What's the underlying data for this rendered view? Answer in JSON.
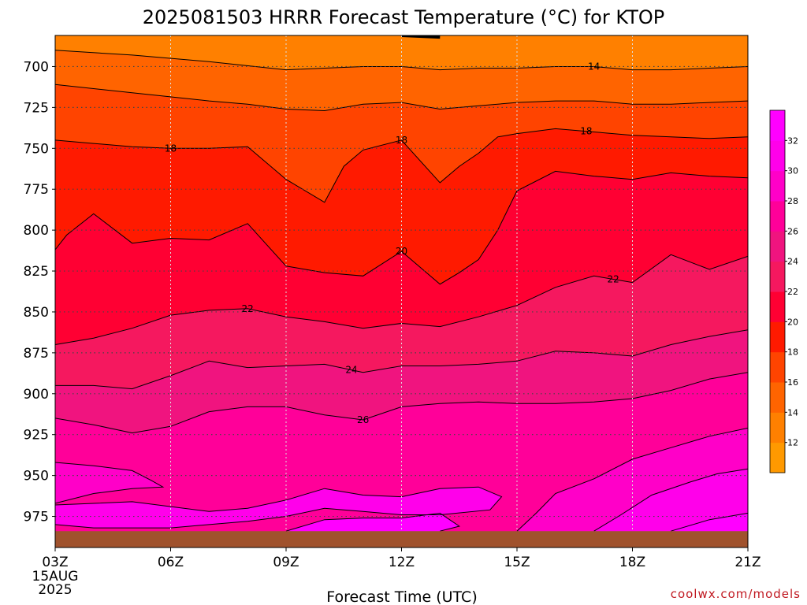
{
  "chart_data": {
    "type": "heatmap",
    "title": "2025081503 HRRR Forecast Temperature (°C) for KTOP",
    "xlabel": "Forecast Time (UTC)",
    "ylabel": "",
    "x_ticks": [
      "03Z",
      "06Z",
      "09Z",
      "12Z",
      "15Z",
      "18Z",
      "21Z"
    ],
    "x_tick_sublabels": [
      "15AUG",
      "2025"
    ],
    "x_hours": [
      3,
      6,
      9,
      12,
      15,
      18,
      21
    ],
    "y_ticks": [
      700,
      725,
      750,
      775,
      800,
      825,
      850,
      875,
      900,
      925,
      950,
      975
    ],
    "y_range": [
      681,
      994
    ],
    "y_axis_inverted": true,
    "units": "°C",
    "grid": true,
    "colorbar_levels": [
      12,
      14,
      16,
      18,
      20,
      22,
      24,
      26,
      28,
      30,
      32
    ],
    "colorbar_colors": [
      "#ff9900",
      "#ff8000",
      "#ff6400",
      "#ff4400",
      "#ff1a00",
      "#ff0033",
      "#f5185f",
      "#f0147f",
      "#ff0099",
      "#ff00c8",
      "#ff00ea",
      "#ff00ff"
    ],
    "isotherms": [
      {
        "level": 12,
        "label": "",
        "points": [
          [
            12,
            681
          ],
          [
            13,
            682
          ]
        ]
      },
      {
        "level": 14,
        "label": "14",
        "points": [
          [
            3,
            690
          ],
          [
            5,
            693
          ],
          [
            7,
            697
          ],
          [
            9,
            702
          ],
          [
            10,
            701
          ],
          [
            11,
            700
          ],
          [
            12,
            700
          ],
          [
            13,
            702
          ],
          [
            14,
            701
          ],
          [
            15,
            701
          ],
          [
            16,
            700
          ],
          [
            17,
            700
          ],
          [
            18,
            702
          ],
          [
            19,
            702
          ],
          [
            20,
            701
          ],
          [
            21,
            700
          ]
        ]
      },
      {
        "level": 16,
        "label": "",
        "points": [
          [
            3,
            711
          ],
          [
            5,
            716
          ],
          [
            7,
            721
          ],
          [
            8,
            723
          ],
          [
            9,
            726
          ],
          [
            10,
            727
          ],
          [
            11,
            723
          ],
          [
            12,
            722
          ],
          [
            13,
            726
          ],
          [
            14,
            724
          ],
          [
            15,
            722
          ],
          [
            16,
            721
          ],
          [
            17,
            721
          ],
          [
            18,
            723
          ],
          [
            19,
            723
          ],
          [
            20,
            722
          ],
          [
            21,
            721
          ]
        ]
      },
      {
        "level": 18,
        "label": "18",
        "points": [
          [
            3,
            745
          ],
          [
            4,
            747
          ],
          [
            5,
            749
          ],
          [
            6,
            750
          ],
          [
            7,
            750
          ],
          [
            8,
            749
          ],
          [
            9,
            769
          ],
          [
            10,
            783
          ],
          [
            10.5,
            761
          ],
          [
            11,
            751
          ],
          [
            12,
            745
          ],
          [
            13,
            771
          ],
          [
            13.5,
            761
          ],
          [
            14,
            753
          ],
          [
            14.5,
            743
          ],
          [
            15,
            741
          ],
          [
            16,
            738
          ],
          [
            17,
            740
          ],
          [
            18,
            742
          ],
          [
            19,
            743
          ],
          [
            20,
            744
          ],
          [
            21,
            743
          ]
        ]
      },
      {
        "level": 20,
        "label": "20",
        "points": [
          [
            3,
            812
          ],
          [
            3.3,
            803
          ],
          [
            4,
            790
          ],
          [
            5,
            808
          ],
          [
            6,
            805
          ],
          [
            7,
            806
          ],
          [
            8,
            796
          ],
          [
            9,
            822
          ],
          [
            10,
            826
          ],
          [
            11,
            828
          ],
          [
            12,
            813
          ],
          [
            13,
            833
          ],
          [
            13.5,
            826
          ],
          [
            14,
            818
          ],
          [
            14.5,
            800
          ],
          [
            15,
            776
          ],
          [
            16,
            764
          ],
          [
            17,
            767
          ],
          [
            18,
            769
          ],
          [
            19,
            765
          ],
          [
            20,
            767
          ],
          [
            21,
            768
          ]
        ]
      },
      {
        "level": 22,
        "label": "22",
        "points": [
          [
            3,
            870
          ],
          [
            4,
            866
          ],
          [
            5,
            860
          ],
          [
            6,
            852
          ],
          [
            7,
            849
          ],
          [
            8,
            848
          ],
          [
            9,
            853
          ],
          [
            10,
            856
          ],
          [
            11,
            860
          ],
          [
            12,
            857
          ],
          [
            13,
            859
          ],
          [
            14,
            853
          ],
          [
            15,
            846
          ],
          [
            16,
            835
          ],
          [
            17,
            828
          ],
          [
            18,
            832
          ],
          [
            19,
            815
          ],
          [
            20,
            824
          ],
          [
            21,
            816
          ]
        ]
      },
      {
        "level": 24,
        "label": "24",
        "points": [
          [
            3,
            895
          ],
          [
            4,
            895
          ],
          [
            5,
            897
          ],
          [
            6,
            889
          ],
          [
            7,
            880
          ],
          [
            8,
            884
          ],
          [
            9,
            883
          ],
          [
            10,
            882
          ],
          [
            11,
            887
          ],
          [
            12,
            883
          ],
          [
            13,
            883
          ],
          [
            14,
            882
          ],
          [
            15,
            880
          ],
          [
            16,
            874
          ],
          [
            17,
            875
          ],
          [
            18,
            877
          ],
          [
            19,
            870
          ],
          [
            20,
            865
          ],
          [
            21,
            861
          ]
        ]
      },
      {
        "level": 26,
        "label": "26",
        "points": [
          [
            3,
            915
          ],
          [
            4,
            919
          ],
          [
            5,
            924
          ],
          [
            6,
            920
          ],
          [
            7,
            911
          ],
          [
            8,
            908
          ],
          [
            9,
            908
          ],
          [
            10,
            913
          ],
          [
            11,
            916
          ],
          [
            12,
            908
          ],
          [
            13,
            906
          ],
          [
            14,
            905
          ],
          [
            15,
            906
          ],
          [
            16,
            906
          ],
          [
            17,
            905
          ],
          [
            18,
            903
          ],
          [
            19,
            898
          ],
          [
            20,
            891
          ],
          [
            21,
            887
          ]
        ]
      },
      {
        "level": 28,
        "label": "",
        "points": [
          [
            3,
            942
          ],
          [
            4,
            944
          ],
          [
            5,
            947
          ],
          [
            5.5,
            953
          ],
          [
            5.8,
            957
          ],
          [
            5,
            958
          ],
          [
            4,
            961
          ],
          [
            3,
            967
          ]
        ]
      },
      {
        "level": 28,
        "label": "",
        "points": [
          [
            15,
            984
          ],
          [
            15.5,
            973
          ],
          [
            16,
            961
          ],
          [
            17,
            952
          ],
          [
            18,
            940
          ],
          [
            19,
            933
          ],
          [
            20,
            926
          ],
          [
            21,
            921
          ]
        ]
      },
      {
        "level": 30,
        "label": "",
        "points": [
          [
            17,
            984
          ],
          [
            17.7,
            974
          ],
          [
            18.5,
            962
          ],
          [
            19.5,
            954
          ],
          [
            20.2,
            949
          ],
          [
            21,
            946
          ]
        ]
      },
      {
        "level": 30,
        "label": "",
        "points": [
          [
            3,
            968
          ],
          [
            5,
            966
          ],
          [
            7,
            972
          ],
          [
            8,
            970
          ],
          [
            9,
            965
          ],
          [
            10,
            958
          ],
          [
            11,
            962
          ],
          [
            12,
            963
          ],
          [
            13,
            958
          ],
          [
            14,
            957
          ],
          [
            14.6,
            963
          ],
          [
            14.3,
            971
          ],
          [
            13,
            974
          ],
          [
            12,
            974
          ],
          [
            11,
            972
          ],
          [
            10,
            970
          ],
          [
            9,
            975
          ],
          [
            8,
            978
          ],
          [
            7,
            980
          ],
          [
            6,
            982
          ],
          [
            5,
            982
          ],
          [
            4,
            982
          ],
          [
            3,
            980
          ]
        ]
      },
      {
        "level": 32,
        "label": "",
        "points": [
          [
            9,
            984
          ],
          [
            10,
            977
          ],
          [
            11,
            976
          ],
          [
            12,
            976
          ],
          [
            13,
            973
          ],
          [
            13.5,
            981
          ],
          [
            13,
            984
          ]
        ]
      },
      {
        "level": 32,
        "label": "",
        "points": [
          [
            19,
            984
          ],
          [
            20,
            977
          ],
          [
            21,
            973
          ]
        ]
      }
    ],
    "ground_level_hpa": 984
  },
  "credit": "coolwx.com/models"
}
